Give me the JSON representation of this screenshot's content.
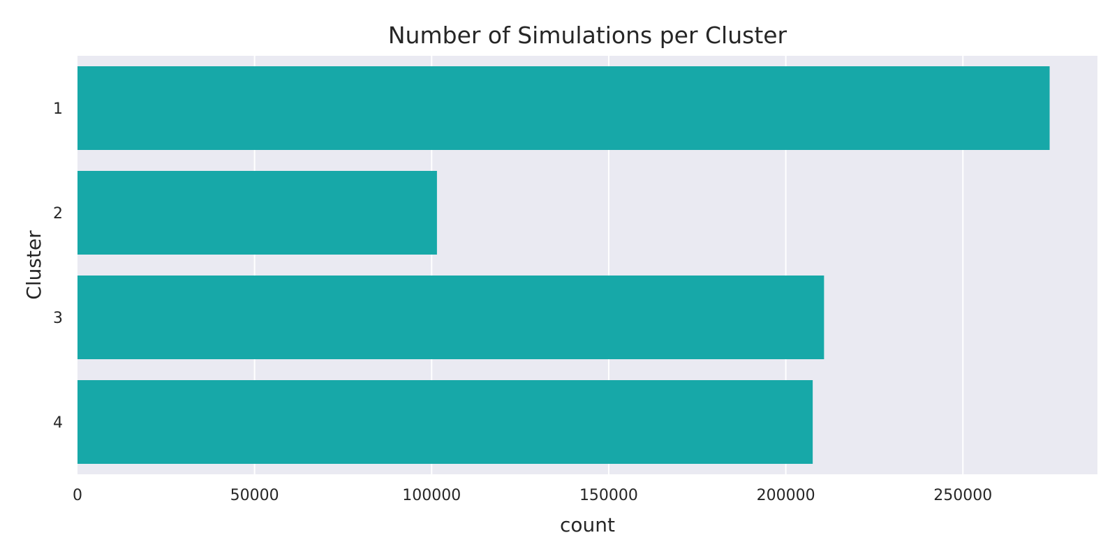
{
  "chart_data": {
    "type": "bar",
    "orientation": "horizontal",
    "title": "Number of Simulations per Cluster",
    "xlabel": "count",
    "ylabel": "Cluster",
    "categories": [
      "1",
      "2",
      "3",
      "4"
    ],
    "values": [
      274500,
      101500,
      210800,
      207600
    ],
    "xlim": [
      0,
      288000
    ],
    "xticks": [
      0,
      50000,
      100000,
      150000,
      200000,
      250000
    ],
    "xtick_labels": [
      "0",
      "50000",
      "100000",
      "150000",
      "200000",
      "250000"
    ],
    "grid": true,
    "legend": "none",
    "colors": {
      "bar": "#17a8a8",
      "plot_background": "#eaeaf2",
      "grid": "#ffffff",
      "text": "#262626"
    }
  }
}
